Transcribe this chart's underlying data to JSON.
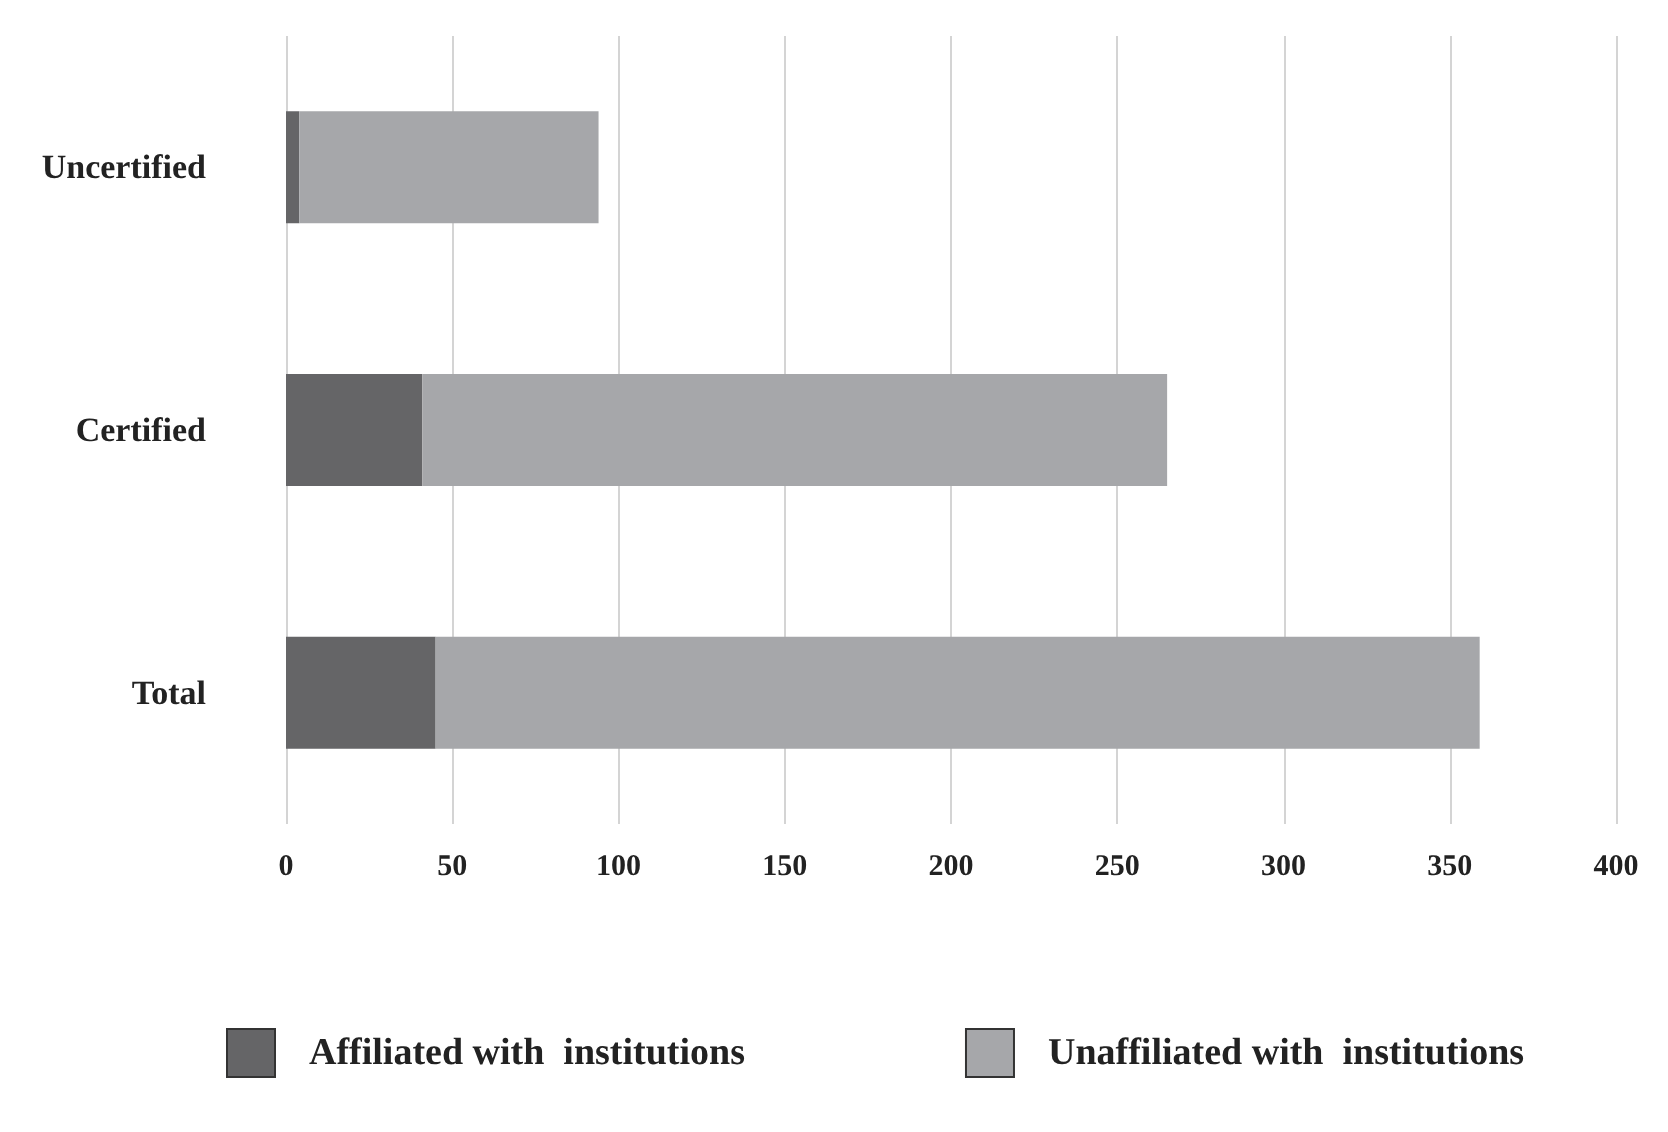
{
  "chart_data": {
    "type": "bar",
    "orientation": "horizontal",
    "stacked": true,
    "categories": [
      "Uncertified",
      "Certified",
      "Total"
    ],
    "series": [
      {
        "name": "Affiliated with  institutions",
        "color": "#656567",
        "values": [
          4,
          41,
          45
        ]
      },
      {
        "name": "Unaffiliated with  institutions",
        "color": "#a6a7aa",
        "values": [
          90,
          224,
          314
        ]
      }
    ],
    "xlim": [
      0,
      400
    ],
    "xticks": [
      0,
      50,
      100,
      150,
      200,
      250,
      300,
      350,
      400
    ],
    "grid": "x",
    "legend": "bottom"
  }
}
